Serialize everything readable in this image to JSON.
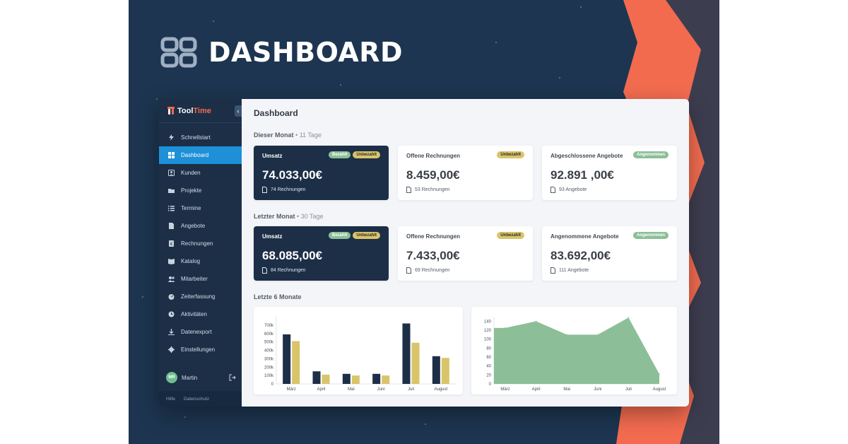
{
  "hero": {
    "title": "DASHBOARD"
  },
  "app": {
    "brand_a": "Tool",
    "brand_b": "Time",
    "collapse_glyph": "‹"
  },
  "sidebar": {
    "items": [
      {
        "label": "Schnellstart",
        "icon": "bolt-icon",
        "active": false
      },
      {
        "label": "Dashboard",
        "icon": "grid-icon",
        "active": true
      },
      {
        "label": "Kunden",
        "icon": "contact-icon",
        "active": false
      },
      {
        "label": "Projekte",
        "icon": "folder-icon",
        "active": false
      },
      {
        "label": "Termine",
        "icon": "list-icon",
        "active": false
      },
      {
        "label": "Angebote",
        "icon": "document-icon",
        "active": false
      },
      {
        "label": "Rechnungen",
        "icon": "invoice-icon",
        "active": false
      },
      {
        "label": "Katalog",
        "icon": "book-icon",
        "active": false
      },
      {
        "label": "Mitarbeiter",
        "icon": "users-icon",
        "active": false
      },
      {
        "label": "Zeiterfassung",
        "icon": "stopwatch-icon",
        "active": false
      },
      {
        "label": "Aktivitäten",
        "icon": "clock-icon",
        "active": false
      },
      {
        "label": "Datenexport",
        "icon": "download-icon",
        "active": false
      },
      {
        "label": "Einstellungen",
        "icon": "gear-icon",
        "active": false
      }
    ],
    "user": {
      "initials": "MR",
      "name": "Martin"
    },
    "footer": {
      "help": "Hilfe",
      "privacy": "Datenschutz"
    }
  },
  "main": {
    "title": "Dashboard",
    "this_month": {
      "label": "Dieser Monat",
      "separator": "•",
      "days": "11 Tage"
    },
    "last_month": {
      "label": "Letzter Monat",
      "separator": "•",
      "days": "30 Tage"
    },
    "last_six": {
      "label": "Letzte 6 Monate"
    },
    "cards_this_month": [
      {
        "label": "Umsatz",
        "value": "74.033,00€",
        "sub": "74 Rechnungen",
        "badges": [
          "Bezahlt",
          "Unbezahlt"
        ]
      },
      {
        "label": "Offene Rechnungen",
        "value": "8.459,00€",
        "sub": "53 Rechnungen",
        "badges": [
          "Unbezahlt"
        ]
      },
      {
        "label": "Abgeschlossene Angebote",
        "value": "92.891 ,00€",
        "sub": "93 Angebote",
        "badges": [
          "Angenommen"
        ]
      }
    ],
    "cards_last_month": [
      {
        "label": "Umsatz",
        "value": "68.085,00€",
        "sub": "84 Rechnungen",
        "badges": [
          "Bezahlt",
          "Unbezahlt"
        ]
      },
      {
        "label": "Offene Rechnungen",
        "value": "7.433,00€",
        "sub": "69 Rechnungen",
        "badges": [
          "Unbezahlt"
        ]
      },
      {
        "label": "Angenommene Angebote",
        "value": "83.692,00€",
        "sub": "111 Angebote",
        "badges": [
          "Angenommen"
        ]
      }
    ]
  },
  "colors": {
    "navy": "#1c2f47",
    "yellow": "#d9c46a",
    "green": "#8cbf97",
    "accent": "#f26b4f",
    "active": "#1e90d8"
  },
  "chart_data": [
    {
      "type": "bar",
      "categories": [
        "März",
        "April",
        "Mai",
        "Juni",
        "Juli",
        "August"
      ],
      "series": [
        {
          "values": [
            590000,
            150000,
            120000,
            120000,
            720000,
            330000
          ],
          "color": "#1c2f47"
        },
        {
          "values": [
            510000,
            110000,
            100000,
            100000,
            490000,
            310000
          ],
          "color": "#d9c46a"
        }
      ],
      "ylim": [
        0,
        800000
      ],
      "yticks": [
        "0",
        "100k",
        "200k",
        "300k",
        "400k",
        "500k",
        "600k",
        "700k"
      ],
      "ytick_values": [
        0,
        100000,
        200000,
        300000,
        400000,
        500000,
        600000,
        700000
      ]
    },
    {
      "type": "area",
      "categories": [
        "März",
        "April",
        "Mai",
        "Juni",
        "Juli",
        "August"
      ],
      "values": [
        125,
        140,
        110,
        110,
        148,
        22
      ],
      "color": "#8cbf97",
      "ylim": [
        0,
        150
      ],
      "yticks": [
        "0",
        "20",
        "40",
        "60",
        "80",
        "100",
        "120",
        "140"
      ],
      "ytick_values": [
        0,
        20,
        40,
        60,
        80,
        100,
        120,
        140
      ]
    }
  ]
}
